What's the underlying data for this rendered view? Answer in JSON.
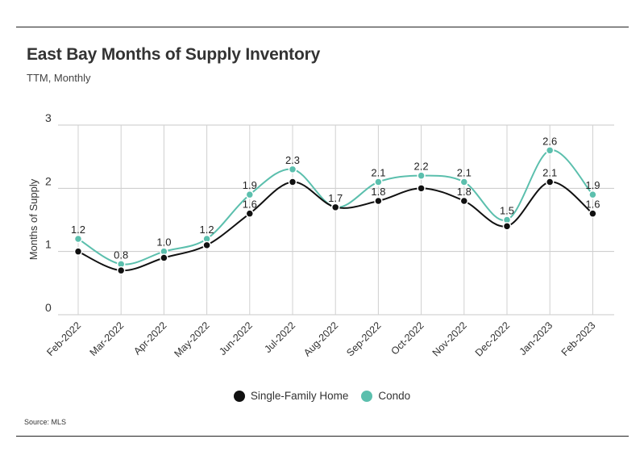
{
  "title": "East Bay Months of Supply Inventory",
  "subtitle": "TTM, Monthly",
  "source": "Source:  MLS",
  "chart_data": {
    "type": "line",
    "title": "East Bay Months of Supply Inventory",
    "subtitle": "TTM, Monthly",
    "xlabel": "",
    "ylabel": "Months of Supply",
    "ylim": [
      0,
      3
    ],
    "yticks": [
      0,
      1,
      2,
      3
    ],
    "grid": true,
    "legend": "bottom-center",
    "categories": [
      "Feb-2022",
      "Mar-2022",
      "Apr-2022",
      "May-2022",
      "Jun-2022",
      "Jul-2022",
      "Aug-2022",
      "Sep-2022",
      "Oct-2022",
      "Nov-2022",
      "Dec-2022",
      "Jan-2023",
      "Feb-2023"
    ],
    "series": [
      {
        "name": "Single-Family Home",
        "color": "#111111",
        "values": [
          1.0,
          0.7,
          0.9,
          1.1,
          1.6,
          2.1,
          1.7,
          1.8,
          2.0,
          1.8,
          1.4,
          2.1,
          1.6
        ],
        "labels": [
          "",
          "",
          "",
          "",
          "1.6",
          "",
          "",
          "1.8",
          "",
          "1.8",
          "",
          "2.1",
          "1.6"
        ]
      },
      {
        "name": "Condo",
        "color": "#5bbfad",
        "values": [
          1.2,
          0.8,
          1.0,
          1.2,
          1.9,
          2.3,
          1.7,
          2.1,
          2.2,
          2.1,
          1.5,
          2.6,
          1.9
        ],
        "labels": [
          "1.2",
          "0.8",
          "1.0",
          "1.2",
          "1.9",
          "2.3",
          "1.7",
          "2.1",
          "2.2",
          "2.1",
          "1.5",
          "2.6",
          "1.9"
        ]
      }
    ]
  }
}
